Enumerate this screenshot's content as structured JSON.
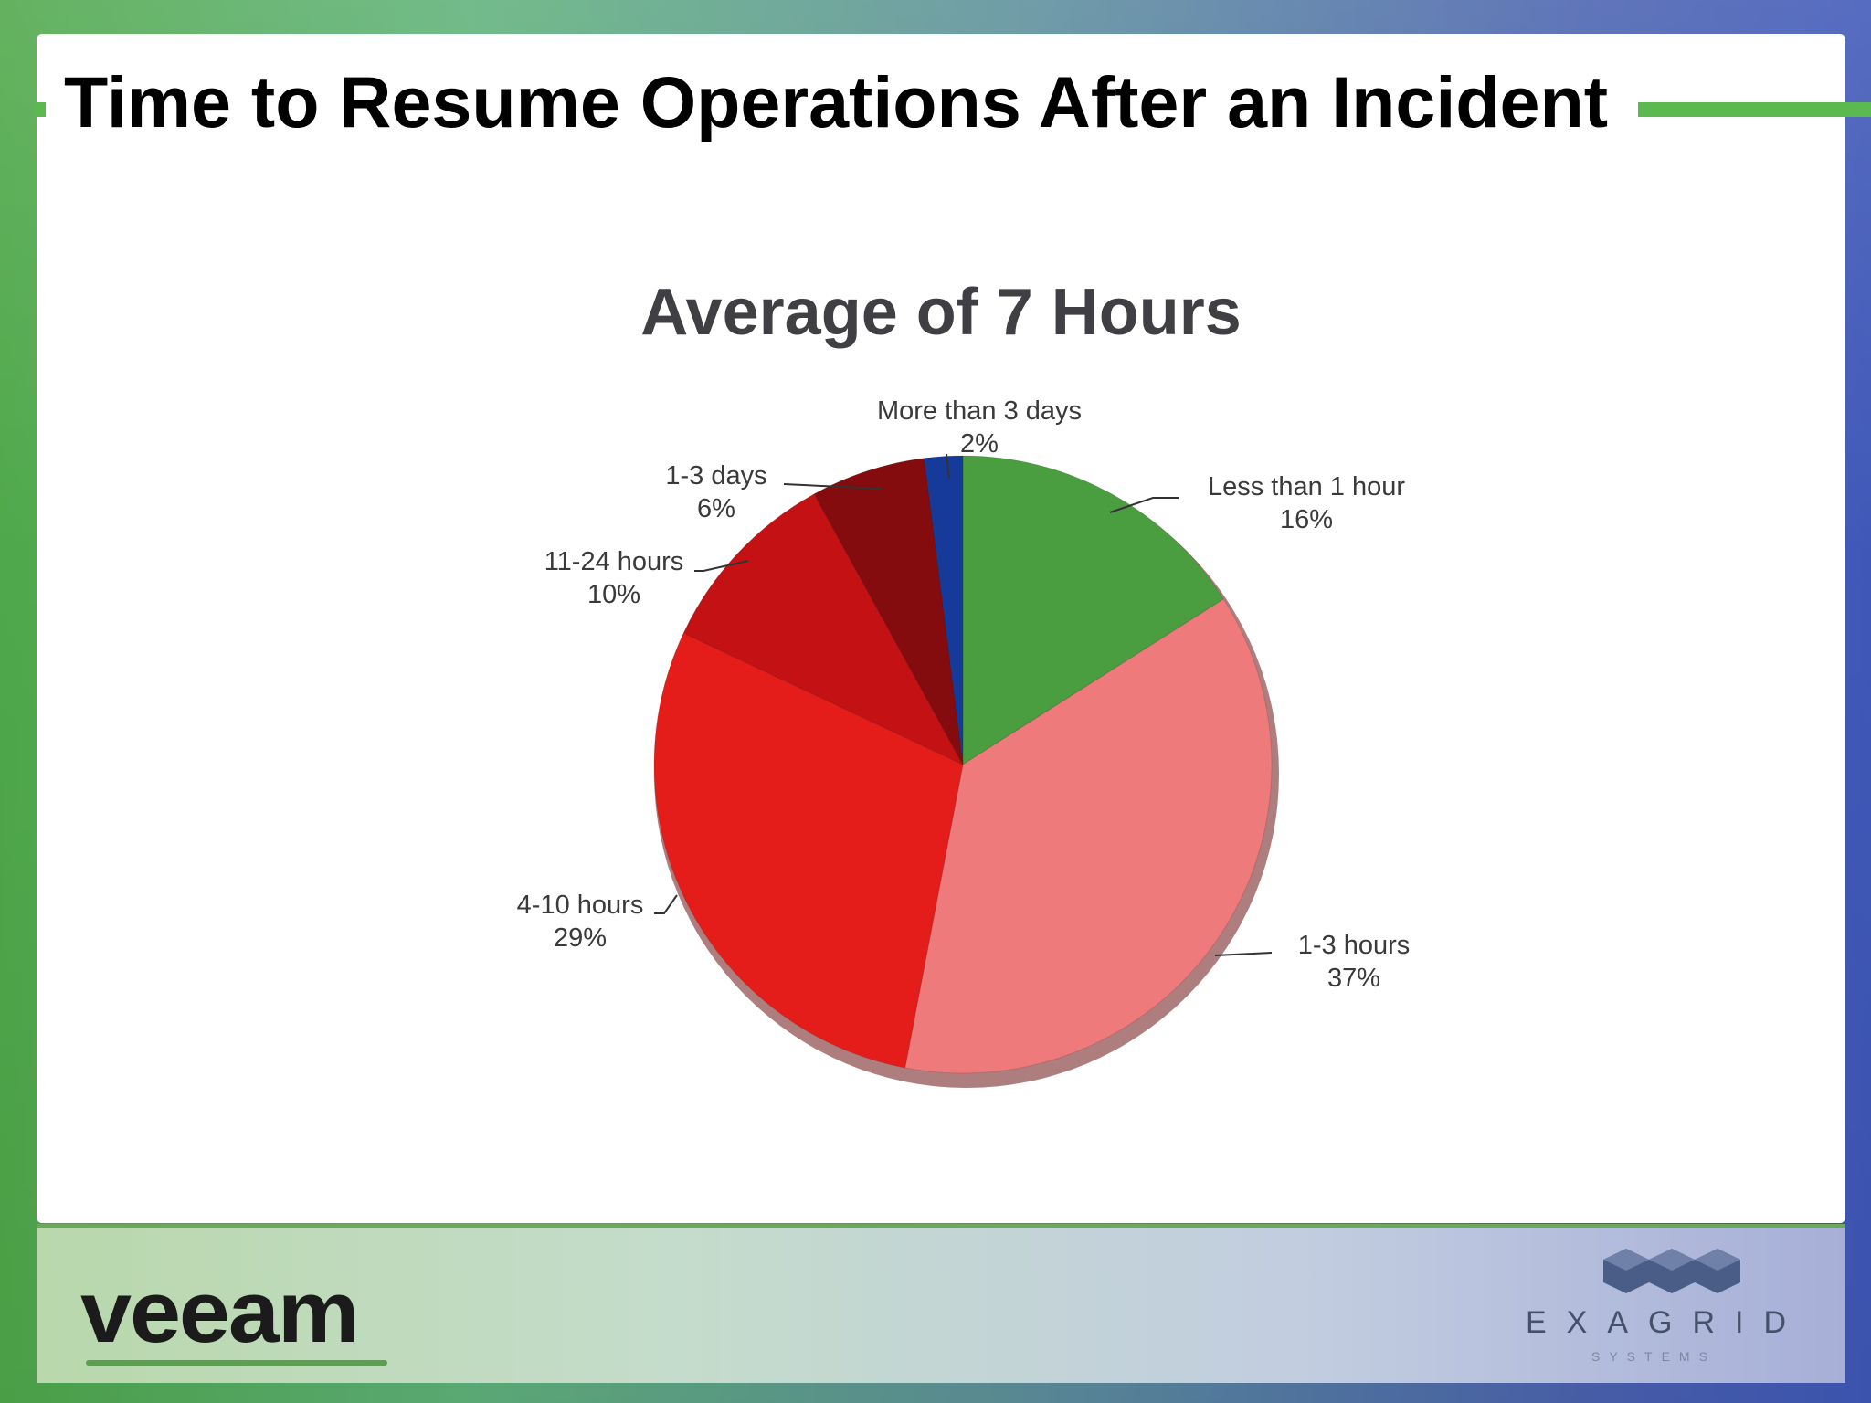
{
  "slide": {
    "title": "Time to Resume Operations After an Incident"
  },
  "chart_data": {
    "type": "pie",
    "title": "Average of 7 Hours",
    "slices": [
      {
        "label": "Less than 1 hour",
        "value": 16,
        "value_label": "16%",
        "color": "#4a9e3f"
      },
      {
        "label": "1-3 hours",
        "value": 37,
        "value_label": "37%",
        "color": "#ef7a7c"
      },
      {
        "label": "4-10 hours",
        "value": 29,
        "value_label": "29%",
        "color": "#e51d1a"
      },
      {
        "label": "11-24 hours",
        "value": 10,
        "value_label": "10%",
        "color": "#c41214"
      },
      {
        "label": "1-3 days",
        "value": 6,
        "value_label": "6%",
        "color": "#840c0e"
      },
      {
        "label": "More than 3 days",
        "value": 2,
        "value_label": "2%",
        "color": "#163a9a"
      }
    ],
    "start_angle": "12 o'clock",
    "direction": "clockwise",
    "legend": "none"
  },
  "footer": {
    "left_logo": "VEEAM",
    "right_logo": "EXAGRID",
    "right_logo_sub": "SYSTEMS",
    "right_logo_mark": "exagrid-cubes-icon"
  }
}
